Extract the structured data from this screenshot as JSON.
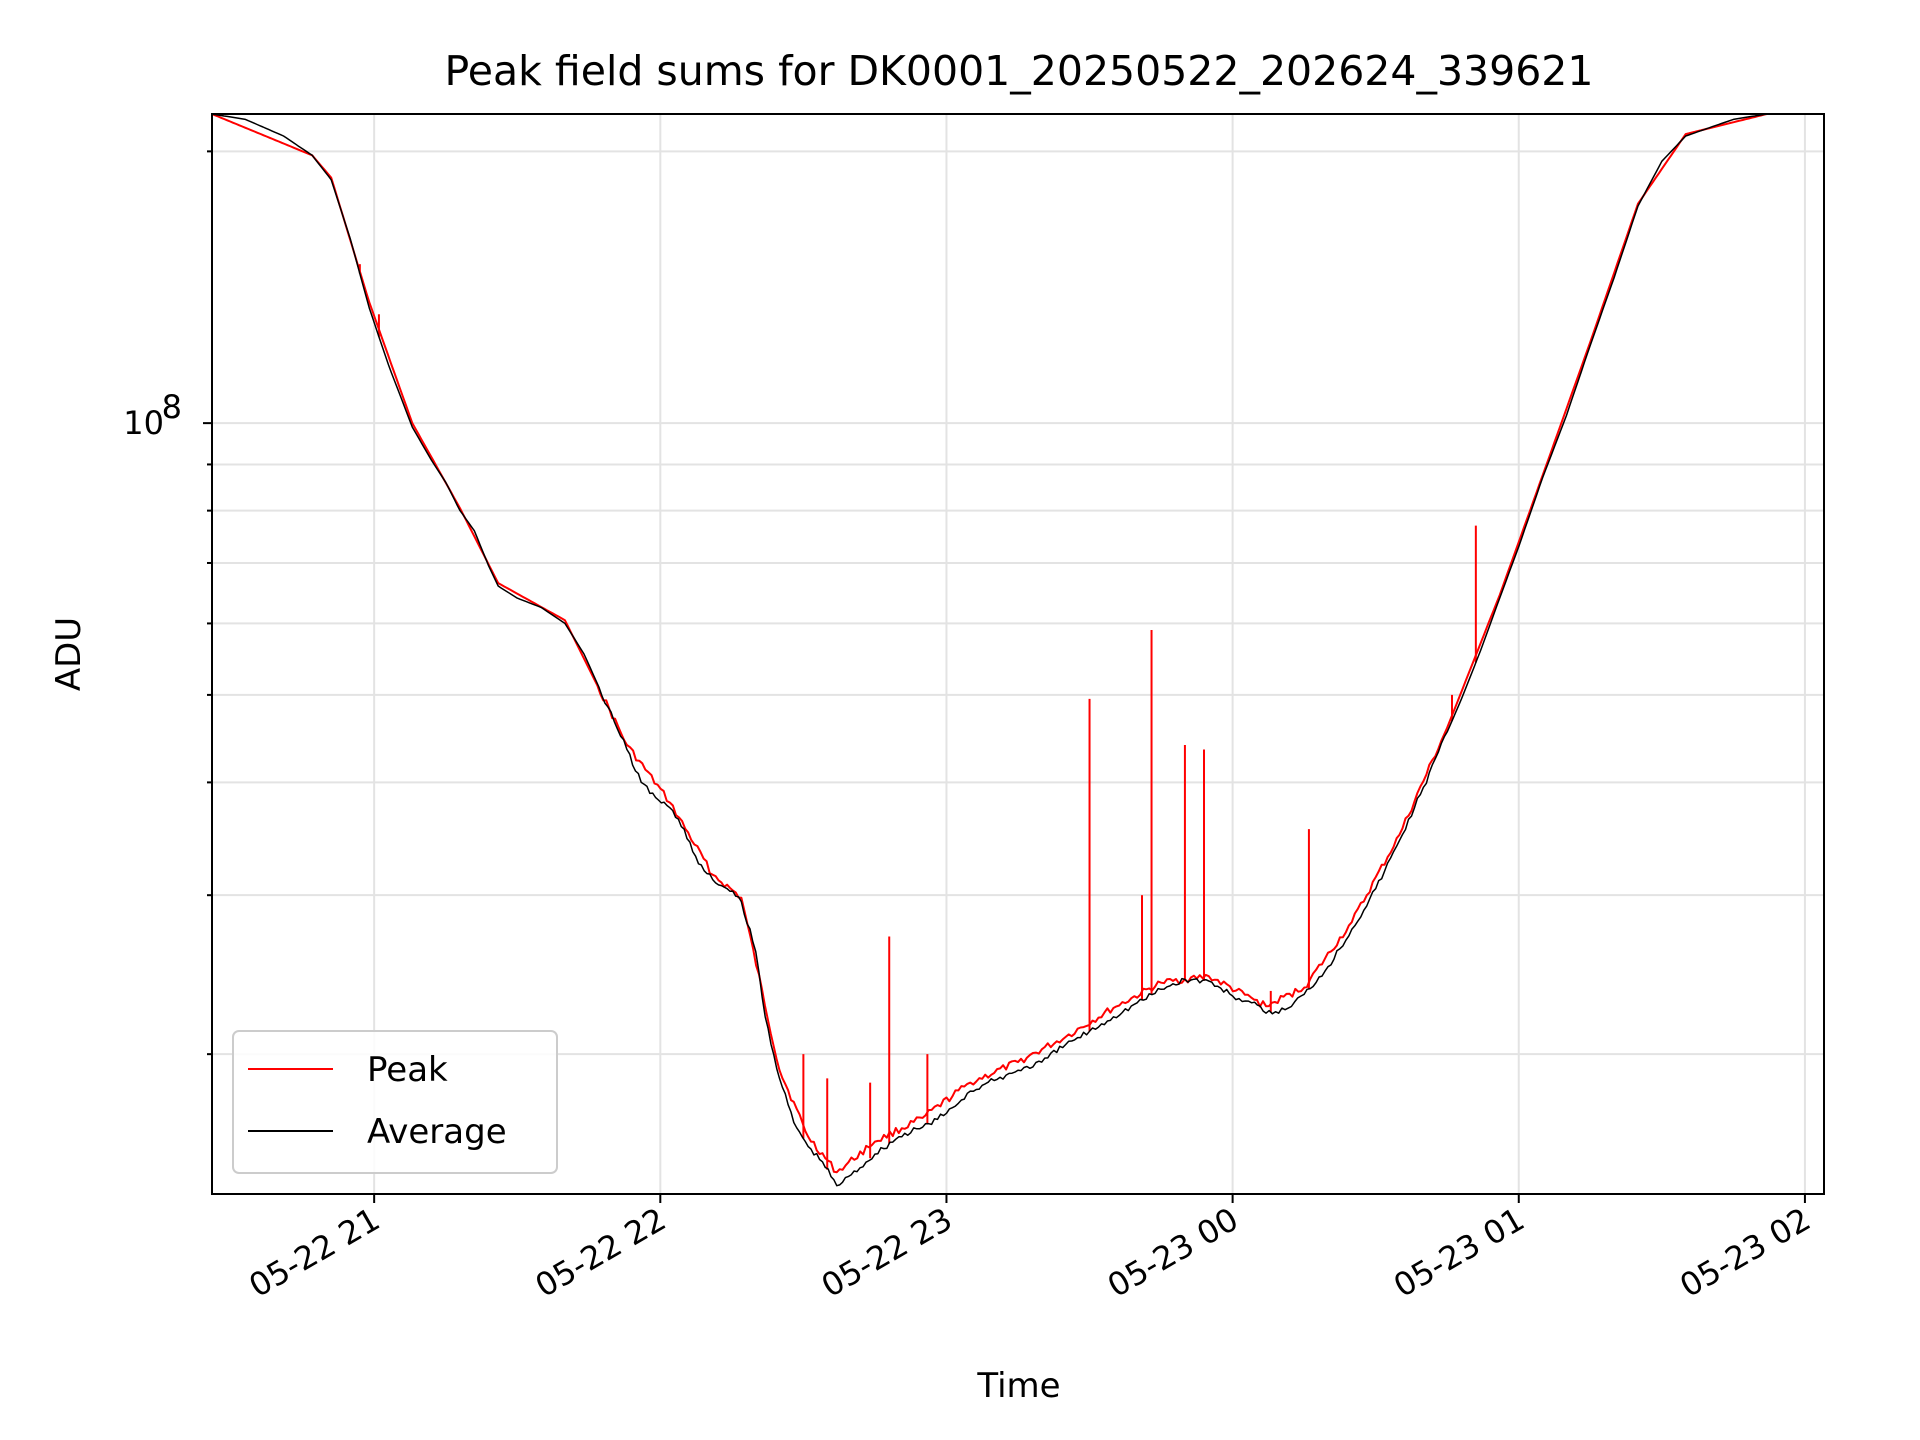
{
  "chart_data": {
    "type": "line",
    "title": "Peak field sums for DK0001_20250522_202624_339621",
    "xlabel": "Time",
    "ylabel": "ADU",
    "x_axis": {
      "type": "time",
      "range": [
        "2025-05-22 20:26",
        "2025-05-23 02:04"
      ],
      "ticks": [
        {
          "t": "2025-05-22 21:00",
          "label": "05-22 21"
        },
        {
          "t": "2025-05-22 22:00",
          "label": "05-22 22"
        },
        {
          "t": "2025-05-22 23:00",
          "label": "05-22 23"
        },
        {
          "t": "2025-05-23 00:00",
          "label": "05-23 00"
        },
        {
          "t": "2025-05-23 01:00",
          "label": "05-23 01"
        },
        {
          "t": "2025-05-23 02:00",
          "label": "05-23 02"
        }
      ]
    },
    "y_axis": {
      "scale": "log",
      "range": [
        14000000.0,
        220000000.0
      ],
      "major_ticks": [
        {
          "value": 100000000.0,
          "base": "10",
          "exp": "8"
        }
      ],
      "minor_ticks": [
        20000000.0,
        30000000.0,
        40000000.0,
        50000000.0,
        60000000.0,
        70000000.0,
        80000000.0,
        90000000.0,
        200000000.0
      ]
    },
    "grid": true,
    "legend": {
      "position": "lower-left",
      "entries": [
        {
          "name": "Peak",
          "color": "#ff0000"
        },
        {
          "name": "Average",
          "color": "#000000"
        }
      ]
    },
    "series": [
      {
        "name": "Average",
        "color": "#000000",
        "points": [
          [
            "2025-05-22 20:26",
            220000000.0
          ],
          [
            "2025-05-22 20:33",
            217000000.0
          ],
          [
            "2025-05-22 20:41",
            208000000.0
          ],
          [
            "2025-05-22 20:47",
            198000000.0
          ],
          [
            "2025-05-22 20:51",
            186000000.0
          ],
          [
            "2025-05-22 20:55",
            160000000.0
          ],
          [
            "2025-05-22 20:59",
            134000000.0
          ],
          [
            "2025-05-22 21:03",
            116000000.0
          ],
          [
            "2025-05-22 21:08",
            99000000.0
          ],
          [
            "2025-05-22 21:12",
            91000000.0
          ],
          [
            "2025-05-22 21:15",
            86000000.0
          ],
          [
            "2025-05-22 21:18",
            80000000.0
          ],
          [
            "2025-05-22 21:21",
            76000000.0
          ],
          [
            "2025-05-22 21:24",
            69500000.0
          ],
          [
            "2025-05-22 21:26",
            66000000.0
          ],
          [
            "2025-05-22 21:30",
            64000000.0
          ],
          [
            "2025-05-22 21:35",
            62500000.0
          ],
          [
            "2025-05-22 21:40",
            60000000.0
          ],
          [
            "2025-05-22 21:44",
            55500000.0
          ],
          [
            "2025-05-22 21:49",
            48500000.0
          ],
          [
            "2025-05-22 21:53",
            43500000.0
          ],
          [
            "2025-05-22 21:56",
            40000000.0
          ],
          [
            "2025-05-22 21:59",
            38500000.0
          ],
          [
            "2025-05-22 22:02",
            37500000.0
          ],
          [
            "2025-05-22 22:05",
            35500000.0
          ],
          [
            "2025-05-22 22:08",
            32500000.0
          ],
          [
            "2025-05-22 22:11",
            31200000.0
          ],
          [
            "2025-05-22 22:14",
            30500000.0
          ],
          [
            "2025-05-22 22:17",
            29500000.0
          ],
          [
            "2025-05-22 22:20",
            26000000.0
          ],
          [
            "2025-05-22 22:22",
            22000000.0
          ],
          [
            "2025-05-22 22:25",
            18800000.0
          ],
          [
            "2025-05-22 22:28",
            16800000.0
          ],
          [
            "2025-05-22 22:31",
            15800000.0
          ],
          [
            "2025-05-22 22:34",
            15200000.0
          ],
          [
            "2025-05-22 22:37",
            14300000.0
          ],
          [
            "2025-05-22 22:40",
            14700000.0
          ],
          [
            "2025-05-22 22:45",
            15500000.0
          ],
          [
            "2025-05-22 22:50",
            16200000.0
          ],
          [
            "2025-05-22 22:55",
            16600000.0
          ],
          [
            "2025-05-22 23:00",
            17200000.0
          ],
          [
            "2025-05-22 23:05",
            18200000.0
          ],
          [
            "2025-05-22 23:10",
            18700000.0
          ],
          [
            "2025-05-22 23:15",
            19200000.0
          ],
          [
            "2025-05-22 23:20",
            19600000.0
          ],
          [
            "2025-05-22 23:25",
            20500000.0
          ],
          [
            "2025-05-22 23:30",
            21200000.0
          ],
          [
            "2025-05-22 23:35",
            22000000.0
          ],
          [
            "2025-05-22 23:40",
            22800000.0
          ],
          [
            "2025-05-22 23:45",
            23600000.0
          ],
          [
            "2025-05-22 23:50",
            24200000.0
          ],
          [
            "2025-05-22 23:55",
            24100000.0
          ],
          [
            "2025-05-23 00:00",
            23200000.0
          ],
          [
            "2025-05-23 00:04",
            22800000.0
          ],
          [
            "2025-05-23 00:07",
            22200000.0
          ],
          [
            "2025-05-23 00:11",
            22400000.0
          ],
          [
            "2025-05-23 00:15",
            23300000.0
          ],
          [
            "2025-05-23 00:20",
            25000000.0
          ],
          [
            "2025-05-23 00:25",
            27500000.0
          ],
          [
            "2025-05-23 00:30",
            30500000.0
          ],
          [
            "2025-05-23 00:35",
            34500000.0
          ],
          [
            "2025-05-23 00:40",
            39500000.0
          ],
          [
            "2025-05-23 00:45",
            45500000.0
          ],
          [
            "2025-05-23 00:48",
            49500000.0
          ],
          [
            "2025-05-23 00:52",
            56000000.0
          ],
          [
            "2025-05-23 00:56",
            64000000.0
          ],
          [
            "2025-05-23 01:00",
            73000000.0
          ],
          [
            "2025-05-23 01:05",
            87000000.0
          ],
          [
            "2025-05-23 01:10",
            102000000.0
          ],
          [
            "2025-05-23 01:15",
            122000000.0
          ],
          [
            "2025-05-23 01:20",
            145000000.0
          ],
          [
            "2025-05-23 01:25",
            174000000.0
          ],
          [
            "2025-05-23 01:30",
            195000000.0
          ],
          [
            "2025-05-23 01:35",
            208000000.0
          ],
          [
            "2025-05-23 01:45",
            217000000.0
          ],
          [
            "2025-05-23 01:52",
            220000000.0
          ],
          [
            "2025-05-23 02:04",
            220000000.0
          ]
        ]
      },
      {
        "name": "Peak",
        "color": "#ff0000",
        "points": [
          [
            "2025-05-22 20:26",
            220000000.0
          ],
          [
            "2025-05-22 20:47",
            198000000.0
          ],
          [
            "2025-05-22 20:51",
            187000000.0
          ],
          [
            "2025-05-22 20:59",
            136000000.0
          ],
          [
            "2025-05-22 21:08",
            100000000.0
          ],
          [
            "2025-05-22 21:18",
            80500000.0
          ],
          [
            "2025-05-22 21:26",
            66500000.0
          ],
          [
            "2025-05-22 21:40",
            60500000.0
          ],
          [
            "2025-05-22 21:53",
            44000000.0
          ],
          [
            "2025-05-22 22:02",
            38000000.0
          ],
          [
            "2025-05-22 22:11",
            31600000.0
          ],
          [
            "2025-05-22 22:17",
            29800000.0
          ],
          [
            "2025-05-22 22:25",
            19200000.0
          ],
          [
            "2025-05-22 22:31",
            16200000.0
          ],
          [
            "2025-05-22 22:37",
            14800000.0
          ],
          [
            "2025-05-22 22:45",
            16000000.0
          ],
          [
            "2025-05-22 22:55",
            17000000.0
          ],
          [
            "2025-05-22 23:05",
            18600000.0
          ],
          [
            "2025-05-22 23:15",
            19600000.0
          ],
          [
            "2025-05-22 23:25",
            20900000.0
          ],
          [
            "2025-05-22 23:35",
            22500000.0
          ],
          [
            "2025-05-22 23:45",
            24000000.0
          ],
          [
            "2025-05-22 23:55",
            24400000.0
          ],
          [
            "2025-05-23 00:07",
            22600000.0
          ],
          [
            "2025-05-23 00:15",
            23700000.0
          ],
          [
            "2025-05-23 00:25",
            28000000.0
          ],
          [
            "2025-05-23 00:35",
            35000000.0
          ],
          [
            "2025-05-23 00:45",
            46000000.0
          ],
          [
            "2025-05-23 00:56",
            64500000.0
          ],
          [
            "2025-05-23 01:05",
            87500000.0
          ],
          [
            "2025-05-23 01:15",
            123000000.0
          ],
          [
            "2025-05-23 01:25",
            175000000.0
          ],
          [
            "2025-05-23 01:35",
            209000000.0
          ],
          [
            "2025-05-23 01:52",
            220000000.0
          ],
          [
            "2025-05-23 02:04",
            220000000.0
          ]
        ],
        "spikes": [
          [
            "2025-05-22 20:57",
            150000000.0
          ],
          [
            "2025-05-22 21:01",
            132000000.0
          ],
          [
            "2025-05-22 22:30",
            20000000.0
          ],
          [
            "2025-05-22 22:35",
            18800000.0
          ],
          [
            "2025-05-22 22:44",
            18600000.0
          ],
          [
            "2025-05-22 22:48",
            27000000.0
          ],
          [
            "2025-05-22 22:56",
            20000000.0
          ],
          [
            "2025-05-22 23:30",
            49500000.0
          ],
          [
            "2025-05-22 23:41",
            30000000.0
          ],
          [
            "2025-05-22 23:43",
            59000000.0
          ],
          [
            "2025-05-22 23:50",
            44000000.0
          ],
          [
            "2025-05-22 23:54",
            43500000.0
          ],
          [
            "2025-05-23 00:08",
            23500000.0
          ],
          [
            "2025-05-23 00:16",
            35500000.0
          ],
          [
            "2025-05-23 00:46",
            50000000.0
          ],
          [
            "2025-05-23 00:51",
            77000000.0
          ]
        ]
      }
    ]
  }
}
